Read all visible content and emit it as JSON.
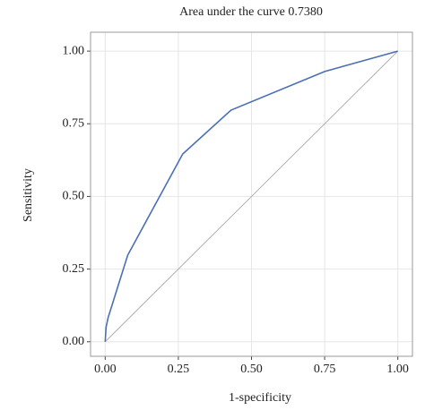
{
  "chart_data": {
    "type": "line",
    "title": "Area under the curve 0.7380",
    "x_label": "1-specificity",
    "y_label": "Sensitivity",
    "x": [
      0,
      0.003,
      0.01,
      0.077,
      0.265,
      0.43,
      0.75,
      1
    ],
    "series": [
      {
        "color": "#4a6fb5",
        "values": [
          0,
          0.05,
          0.083,
          0.298,
          0.646,
          0.797,
          0.93,
          1
        ]
      }
    ],
    "xlim": [
      -0.05,
      1.05
    ],
    "ylim": [
      -0.05,
      1.065
    ],
    "xticks": [
      {
        "value": 0,
        "label": "0.00"
      },
      {
        "value": 0.25,
        "label": "0.25"
      },
      {
        "value": 0.5,
        "label": "0.50"
      },
      {
        "value": 0.75,
        "label": "0.75"
      },
      {
        "value": 1,
        "label": "1.00"
      }
    ],
    "yticks": [
      {
        "value": 0,
        "label": "0.00"
      },
      {
        "value": 0.25,
        "label": "0.25"
      },
      {
        "value": 0.5,
        "label": "0.50"
      },
      {
        "value": 0.75,
        "label": "0.75"
      },
      {
        "value": 1,
        "label": "1.00"
      }
    ],
    "grid": true,
    "reference_color": "#b0b0b0"
  }
}
